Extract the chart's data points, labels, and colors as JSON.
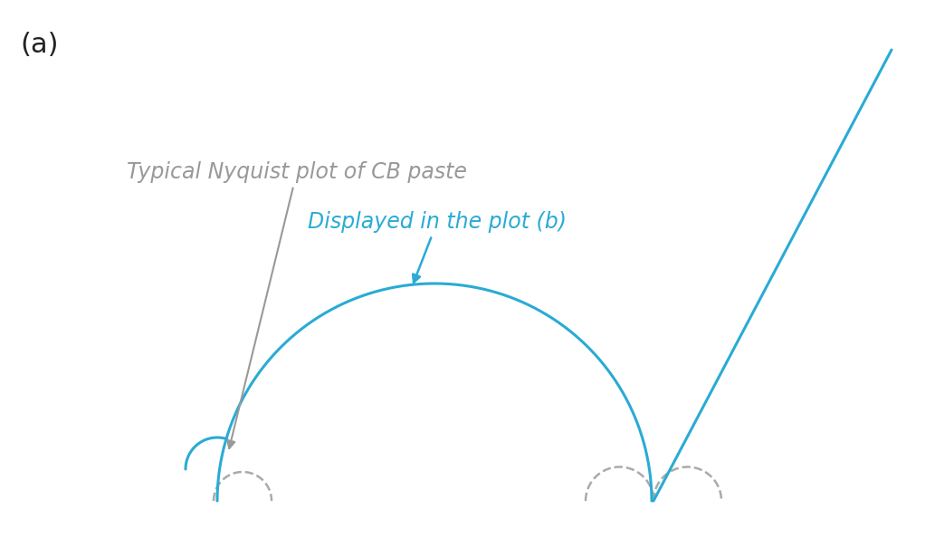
{
  "panel_label": "(a)",
  "panel_label_fontsize": 22,
  "panel_label_color": "#222222",
  "bg_color": "#ffffff",
  "cyan_color": "#29ABD4",
  "gray_color": "#999999",
  "gray_arrow_text": "Typical Nyquist plot of CB paste",
  "gray_arrow_text_fontsize": 17,
  "cyan_arrow_text": "Displayed in the plot (b)",
  "cyan_arrow_text_fontsize": 17,
  "dashed_color": "#aaaaaa",
  "figsize": [
    10.33,
    6.05
  ],
  "dpi": 100
}
